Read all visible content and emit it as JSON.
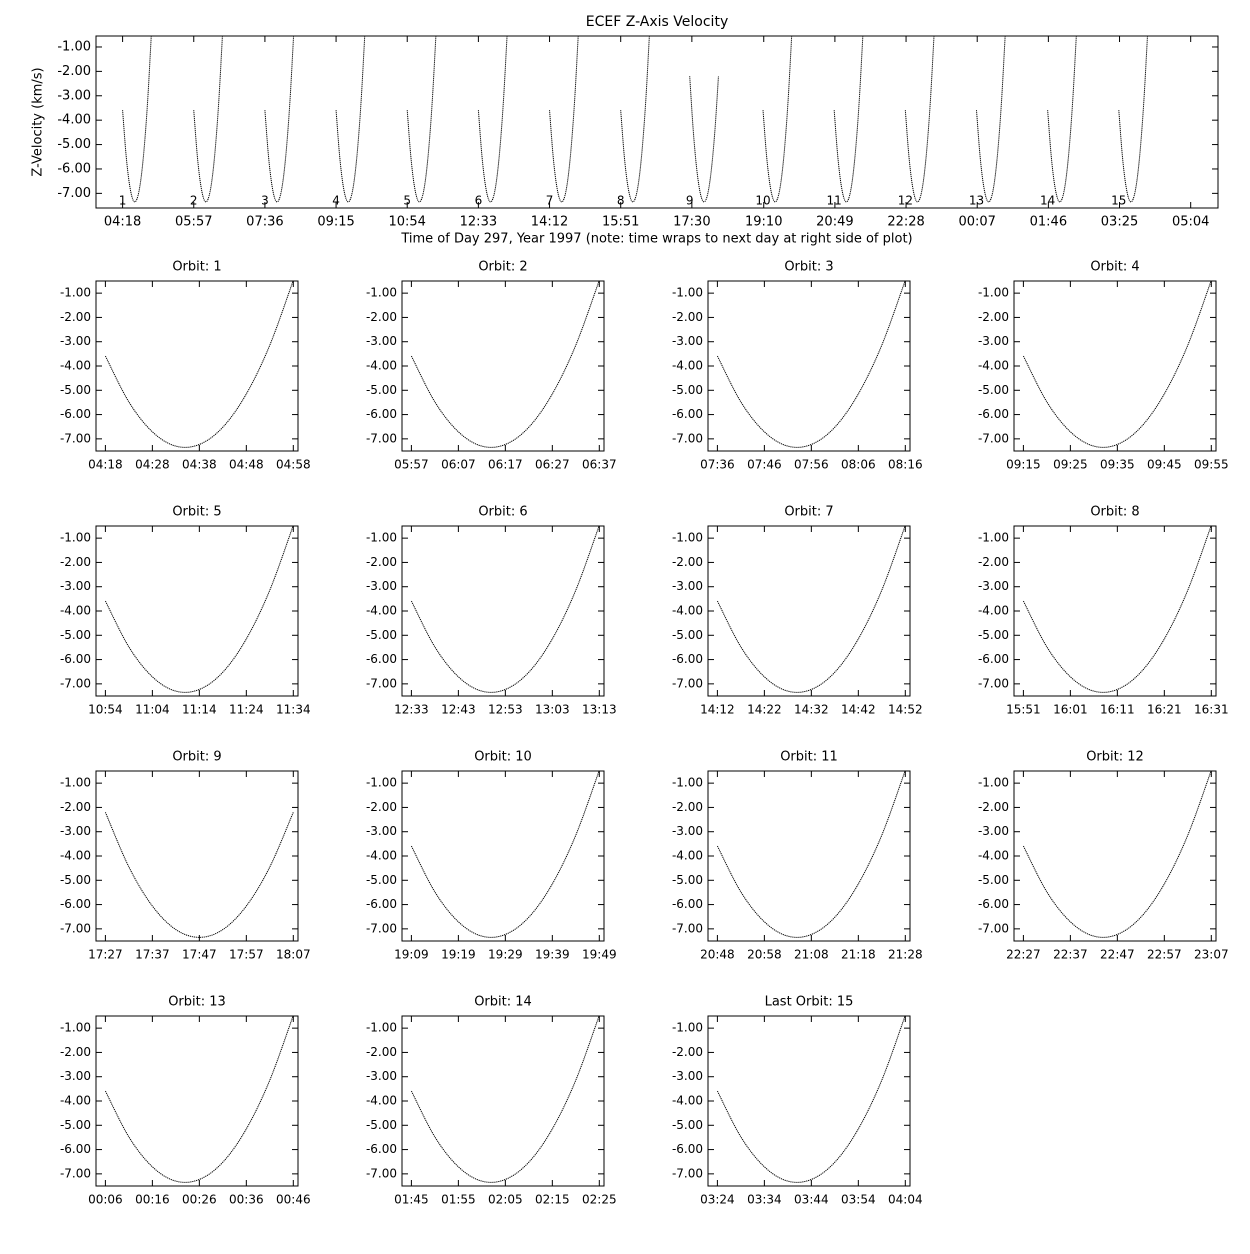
{
  "chart_data": [
    {
      "type": "overview",
      "title": "ECEF Z-Axis Velocity",
      "y_label": "Z-Velocity (km/s)",
      "x_label": "Time of Day 297, Year 1997 (note: time wraps to next day at right side of plot)",
      "xlim": [
        "03:41",
        "05:42"
      ],
      "xticks": [
        "04:18",
        "05:57",
        "07:36",
        "09:15",
        "10:54",
        "12:33",
        "14:12",
        "15:51",
        "17:30",
        "19:10",
        "20:49",
        "22:28",
        "00:07",
        "01:46",
        "03:25",
        "05:04"
      ],
      "ylim": [
        -7.6,
        -0.55
      ],
      "yticks": [
        {
          "value": -1,
          "label": "-1.00"
        },
        {
          "value": -2,
          "label": "-2.00"
        },
        {
          "value": -3,
          "label": "-3.00"
        },
        {
          "value": -4,
          "label": "-4.00"
        },
        {
          "value": -5,
          "label": "-5.00"
        },
        {
          "value": -6,
          "label": "-6.00"
        },
        {
          "value": -7,
          "label": "-7.00"
        }
      ],
      "orbit_labels": [
        "1",
        "2",
        "3",
        "4",
        "5",
        "6",
        "7",
        "8",
        "9",
        "10",
        "11",
        "12",
        "13",
        "14",
        "15"
      ]
    },
    {
      "type": "line",
      "title": "Orbit: 1",
      "x": [
        "04:18",
        "04:23",
        "04:28",
        "04:33",
        "04:38",
        "04:43",
        "04:48",
        "04:53",
        "04:58"
      ],
      "values": [
        -3.59,
        -5.48,
        -6.71,
        -7.3,
        -7.23,
        -6.52,
        -5.15,
        -3.14,
        -0.47
      ],
      "xlim": [
        "04:16",
        "04:59"
      ],
      "xticks": [
        "04:18",
        "04:28",
        "04:38",
        "04:48",
        "04:58"
      ],
      "ylim": [
        -7.5,
        -0.5
      ],
      "yticks": [
        {
          "value": -1,
          "label": "-1.00"
        },
        {
          "value": -2,
          "label": "-2.00"
        },
        {
          "value": -3,
          "label": "-3.00"
        },
        {
          "value": -4,
          "label": "-4.00"
        },
        {
          "value": -5,
          "label": "-5.00"
        },
        {
          "value": -6,
          "label": "-6.00"
        },
        {
          "value": -7,
          "label": "-7.00"
        }
      ]
    },
    {
      "type": "line",
      "title": "Orbit: 2",
      "x": [
        "05:57",
        "06:02",
        "06:07",
        "06:12",
        "06:17",
        "06:22",
        "06:27",
        "06:32",
        "06:37"
      ],
      "values": [
        -3.59,
        -5.48,
        -6.71,
        -7.3,
        -7.23,
        -6.52,
        -5.15,
        -3.14,
        -0.47
      ],
      "xlim": [
        "05:55",
        "06:38"
      ],
      "xticks": [
        "05:57",
        "06:07",
        "06:17",
        "06:27",
        "06:37"
      ],
      "ylim": [
        -7.5,
        -0.5
      ],
      "yticks": [
        {
          "value": -1,
          "label": "-1.00"
        },
        {
          "value": -2,
          "label": "-2.00"
        },
        {
          "value": -3,
          "label": "-3.00"
        },
        {
          "value": -4,
          "label": "-4.00"
        },
        {
          "value": -5,
          "label": "-5.00"
        },
        {
          "value": -6,
          "label": "-6.00"
        },
        {
          "value": -7,
          "label": "-7.00"
        }
      ]
    },
    {
      "type": "line",
      "title": "Orbit: 3",
      "x": [
        "07:36",
        "07:41",
        "07:46",
        "07:51",
        "07:56",
        "08:01",
        "08:06",
        "08:11",
        "08:16"
      ],
      "values": [
        -3.59,
        -5.48,
        -6.71,
        -7.3,
        -7.23,
        -6.52,
        -5.15,
        -3.14,
        -0.47
      ],
      "xlim": [
        "07:34",
        "08:17"
      ],
      "xticks": [
        "07:36",
        "07:46",
        "07:56",
        "08:06",
        "08:16"
      ],
      "ylim": [
        -7.5,
        -0.5
      ],
      "yticks": [
        {
          "value": -1,
          "label": "-1.00"
        },
        {
          "value": -2,
          "label": "-2.00"
        },
        {
          "value": -3,
          "label": "-3.00"
        },
        {
          "value": -4,
          "label": "-4.00"
        },
        {
          "value": -5,
          "label": "-5.00"
        },
        {
          "value": -6,
          "label": "-6.00"
        },
        {
          "value": -7,
          "label": "-7.00"
        }
      ]
    },
    {
      "type": "line",
      "title": "Orbit: 4",
      "x": [
        "09:15",
        "09:20",
        "09:25",
        "09:30",
        "09:35",
        "09:40",
        "09:45",
        "09:50",
        "09:55"
      ],
      "values": [
        -3.59,
        -5.48,
        -6.71,
        -7.3,
        -7.23,
        -6.52,
        -5.15,
        -3.14,
        -0.47
      ],
      "xlim": [
        "09:13",
        "09:56"
      ],
      "xticks": [
        "09:15",
        "09:25",
        "09:35",
        "09:45",
        "09:55"
      ],
      "ylim": [
        -7.5,
        -0.5
      ],
      "yticks": [
        {
          "value": -1,
          "label": "-1.00"
        },
        {
          "value": -2,
          "label": "-2.00"
        },
        {
          "value": -3,
          "label": "-3.00"
        },
        {
          "value": -4,
          "label": "-4.00"
        },
        {
          "value": -5,
          "label": "-5.00"
        },
        {
          "value": -6,
          "label": "-6.00"
        },
        {
          "value": -7,
          "label": "-7.00"
        }
      ]
    },
    {
      "type": "line",
      "title": "Orbit: 5",
      "x": [
        "10:54",
        "10:59",
        "11:04",
        "11:09",
        "11:14",
        "11:19",
        "11:24",
        "11:29",
        "11:34"
      ],
      "values": [
        -3.59,
        -5.48,
        -6.71,
        -7.3,
        -7.23,
        -6.52,
        -5.15,
        -3.14,
        -0.47
      ],
      "xlim": [
        "10:52",
        "11:35"
      ],
      "xticks": [
        "10:54",
        "11:04",
        "11:14",
        "11:24",
        "11:34"
      ],
      "ylim": [
        -7.5,
        -0.5
      ],
      "yticks": [
        {
          "value": -1,
          "label": "-1.00"
        },
        {
          "value": -2,
          "label": "-2.00"
        },
        {
          "value": -3,
          "label": "-3.00"
        },
        {
          "value": -4,
          "label": "-4.00"
        },
        {
          "value": -5,
          "label": "-5.00"
        },
        {
          "value": -6,
          "label": "-6.00"
        },
        {
          "value": -7,
          "label": "-7.00"
        }
      ]
    },
    {
      "type": "line",
      "title": "Orbit: 6",
      "x": [
        "12:33",
        "12:38",
        "12:43",
        "12:48",
        "12:53",
        "12:58",
        "13:03",
        "13:08",
        "13:13"
      ],
      "values": [
        -3.59,
        -5.48,
        -6.71,
        -7.3,
        -7.23,
        -6.52,
        -5.15,
        -3.14,
        -0.47
      ],
      "xlim": [
        "12:31",
        "13:14"
      ],
      "xticks": [
        "12:33",
        "12:43",
        "12:53",
        "13:03",
        "13:13"
      ],
      "ylim": [
        -7.5,
        -0.5
      ],
      "yticks": [
        {
          "value": -1,
          "label": "-1.00"
        },
        {
          "value": -2,
          "label": "-2.00"
        },
        {
          "value": -3,
          "label": "-3.00"
        },
        {
          "value": -4,
          "label": "-4.00"
        },
        {
          "value": -5,
          "label": "-5.00"
        },
        {
          "value": -6,
          "label": "-6.00"
        },
        {
          "value": -7,
          "label": "-7.00"
        }
      ]
    },
    {
      "type": "line",
      "title": "Orbit: 7",
      "x": [
        "14:12",
        "14:17",
        "14:22",
        "14:27",
        "14:32",
        "14:37",
        "14:42",
        "14:47",
        "14:52"
      ],
      "values": [
        -3.59,
        -5.48,
        -6.71,
        -7.3,
        -7.23,
        -6.52,
        -5.15,
        -3.14,
        -0.47
      ],
      "xlim": [
        "14:10",
        "14:53"
      ],
      "xticks": [
        "14:12",
        "14:22",
        "14:32",
        "14:42",
        "14:52"
      ],
      "ylim": [
        -7.5,
        -0.5
      ],
      "yticks": [
        {
          "value": -1,
          "label": "-1.00"
        },
        {
          "value": -2,
          "label": "-2.00"
        },
        {
          "value": -3,
          "label": "-3.00"
        },
        {
          "value": -4,
          "label": "-4.00"
        },
        {
          "value": -5,
          "label": "-5.00"
        },
        {
          "value": -6,
          "label": "-6.00"
        },
        {
          "value": -7,
          "label": "-7.00"
        }
      ]
    },
    {
      "type": "line",
      "title": "Orbit: 8",
      "x": [
        "15:51",
        "15:56",
        "16:01",
        "16:06",
        "16:11",
        "16:16",
        "16:21",
        "16:26",
        "16:31"
      ],
      "values": [
        -3.59,
        -5.48,
        -6.71,
        -7.3,
        -7.23,
        -6.52,
        -5.15,
        -3.14,
        -0.47
      ],
      "xlim": [
        "15:49",
        "16:32"
      ],
      "xticks": [
        "15:51",
        "16:01",
        "16:11",
        "16:21",
        "16:31"
      ],
      "ylim": [
        -7.5,
        -0.5
      ],
      "yticks": [
        {
          "value": -1,
          "label": "-1.00"
        },
        {
          "value": -2,
          "label": "-2.00"
        },
        {
          "value": -3,
          "label": "-3.00"
        },
        {
          "value": -4,
          "label": "-4.00"
        },
        {
          "value": -5,
          "label": "-5.00"
        },
        {
          "value": -6,
          "label": "-6.00"
        },
        {
          "value": -7,
          "label": "-7.00"
        }
      ]
    },
    {
      "type": "line",
      "title": "Orbit: 9",
      "x": [
        "17:27",
        "17:32",
        "17:37",
        "17:42",
        "17:47",
        "17:52",
        "17:57",
        "18:02",
        "18:07"
      ],
      "values": [
        -2.2,
        -4.45,
        -6.06,
        -7.03,
        -7.35,
        -7.03,
        -6.06,
        -4.45,
        -2.2
      ],
      "xlim": [
        "17:25",
        "18:08"
      ],
      "xticks": [
        "17:27",
        "17:37",
        "17:47",
        "17:57",
        "18:07"
      ],
      "ylim": [
        -7.5,
        -0.5
      ],
      "yticks": [
        {
          "value": -1,
          "label": "-1.00"
        },
        {
          "value": -2,
          "label": "-2.00"
        },
        {
          "value": -3,
          "label": "-3.00"
        },
        {
          "value": -4,
          "label": "-4.00"
        },
        {
          "value": -5,
          "label": "-5.00"
        },
        {
          "value": -6,
          "label": "-6.00"
        },
        {
          "value": -7,
          "label": "-7.00"
        }
      ]
    },
    {
      "type": "line",
      "title": "Orbit: 10",
      "x": [
        "19:09",
        "19:14",
        "19:19",
        "19:24",
        "19:29",
        "19:34",
        "19:39",
        "19:44",
        "19:49"
      ],
      "values": [
        -3.59,
        -5.48,
        -6.71,
        -7.3,
        -7.23,
        -6.52,
        -5.15,
        -3.14,
        -0.47
      ],
      "xlim": [
        "19:07",
        "19:50"
      ],
      "xticks": [
        "19:09",
        "19:19",
        "19:29",
        "19:39",
        "19:49"
      ],
      "ylim": [
        -7.5,
        -0.5
      ],
      "yticks": [
        {
          "value": -1,
          "label": "-1.00"
        },
        {
          "value": -2,
          "label": "-2.00"
        },
        {
          "value": -3,
          "label": "-3.00"
        },
        {
          "value": -4,
          "label": "-4.00"
        },
        {
          "value": -5,
          "label": "-5.00"
        },
        {
          "value": -6,
          "label": "-6.00"
        },
        {
          "value": -7,
          "label": "-7.00"
        }
      ]
    },
    {
      "type": "line",
      "title": "Orbit: 11",
      "x": [
        "20:48",
        "20:53",
        "20:58",
        "21:03",
        "21:08",
        "21:13",
        "21:18",
        "21:23",
        "21:28"
      ],
      "values": [
        -3.59,
        -5.48,
        -6.71,
        -7.3,
        -7.23,
        -6.52,
        -5.15,
        -3.14,
        -0.47
      ],
      "xlim": [
        "20:46",
        "21:29"
      ],
      "xticks": [
        "20:48",
        "20:58",
        "21:08",
        "21:18",
        "21:28"
      ],
      "ylim": [
        -7.5,
        -0.5
      ],
      "yticks": [
        {
          "value": -1,
          "label": "-1.00"
        },
        {
          "value": -2,
          "label": "-2.00"
        },
        {
          "value": -3,
          "label": "-3.00"
        },
        {
          "value": -4,
          "label": "-4.00"
        },
        {
          "value": -5,
          "label": "-5.00"
        },
        {
          "value": -6,
          "label": "-6.00"
        },
        {
          "value": -7,
          "label": "-7.00"
        }
      ]
    },
    {
      "type": "line",
      "title": "Orbit: 12",
      "x": [
        "22:27",
        "22:32",
        "22:37",
        "22:42",
        "22:47",
        "22:52",
        "22:57",
        "23:02",
        "23:07"
      ],
      "values": [
        -3.59,
        -5.48,
        -6.71,
        -7.3,
        -7.23,
        -6.52,
        -5.15,
        -3.14,
        -0.47
      ],
      "xlim": [
        "22:25",
        "23:08"
      ],
      "xticks": [
        "22:27",
        "22:37",
        "22:47",
        "22:57",
        "23:07"
      ],
      "ylim": [
        -7.5,
        -0.5
      ],
      "yticks": [
        {
          "value": -1,
          "label": "-1.00"
        },
        {
          "value": -2,
          "label": "-2.00"
        },
        {
          "value": -3,
          "label": "-3.00"
        },
        {
          "value": -4,
          "label": "-4.00"
        },
        {
          "value": -5,
          "label": "-5.00"
        },
        {
          "value": -6,
          "label": "-6.00"
        },
        {
          "value": -7,
          "label": "-7.00"
        }
      ]
    },
    {
      "type": "line",
      "title": "Orbit: 13",
      "x": [
        "00:06",
        "00:11",
        "00:16",
        "00:21",
        "00:26",
        "00:31",
        "00:36",
        "00:41",
        "00:46"
      ],
      "values": [
        -3.59,
        -5.48,
        -6.71,
        -7.3,
        -7.23,
        -6.52,
        -5.15,
        -3.14,
        -0.47
      ],
      "xlim": [
        "00:04",
        "00:47"
      ],
      "xticks": [
        "00:06",
        "00:16",
        "00:26",
        "00:36",
        "00:46"
      ],
      "ylim": [
        -7.5,
        -0.5
      ],
      "yticks": [
        {
          "value": -1,
          "label": "-1.00"
        },
        {
          "value": -2,
          "label": "-2.00"
        },
        {
          "value": -3,
          "label": "-3.00"
        },
        {
          "value": -4,
          "label": "-4.00"
        },
        {
          "value": -5,
          "label": "-5.00"
        },
        {
          "value": -6,
          "label": "-6.00"
        },
        {
          "value": -7,
          "label": "-7.00"
        }
      ]
    },
    {
      "type": "line",
      "title": "Orbit: 14",
      "x": [
        "01:45",
        "01:50",
        "01:55",
        "02:00",
        "02:05",
        "02:10",
        "02:15",
        "02:20",
        "02:25"
      ],
      "values": [
        -3.59,
        -5.48,
        -6.71,
        -7.3,
        -7.23,
        -6.52,
        -5.15,
        -3.14,
        -0.47
      ],
      "xlim": [
        "01:43",
        "02:26"
      ],
      "xticks": [
        "01:45",
        "01:55",
        "02:05",
        "02:15",
        "02:25"
      ],
      "ylim": [
        -7.5,
        -0.5
      ],
      "yticks": [
        {
          "value": -1,
          "label": "-1.00"
        },
        {
          "value": -2,
          "label": "-2.00"
        },
        {
          "value": -3,
          "label": "-3.00"
        },
        {
          "value": -4,
          "label": "-4.00"
        },
        {
          "value": -5,
          "label": "-5.00"
        },
        {
          "value": -6,
          "label": "-6.00"
        },
        {
          "value": -7,
          "label": "-7.00"
        }
      ]
    },
    {
      "type": "line",
      "title": "Last Orbit: 15",
      "x": [
        "03:24",
        "03:29",
        "03:34",
        "03:39",
        "03:44",
        "03:49",
        "03:54",
        "03:59",
        "04:04"
      ],
      "values": [
        -3.59,
        -5.48,
        -6.71,
        -7.3,
        -7.23,
        -6.52,
        -5.15,
        -3.14,
        -0.47
      ],
      "xlim": [
        "03:22",
        "04:05"
      ],
      "xticks": [
        "03:24",
        "03:34",
        "03:44",
        "03:54",
        "04:04"
      ],
      "ylim": [
        -7.5,
        -0.5
      ],
      "yticks": [
        {
          "value": -1,
          "label": "-1.00"
        },
        {
          "value": -2,
          "label": "-2.00"
        },
        {
          "value": -3,
          "label": "-3.00"
        },
        {
          "value": -4,
          "label": "-4.00"
        },
        {
          "value": -5,
          "label": "-5.00"
        },
        {
          "value": -6,
          "label": "-6.00"
        },
        {
          "value": -7,
          "label": "-7.00"
        }
      ]
    }
  ]
}
